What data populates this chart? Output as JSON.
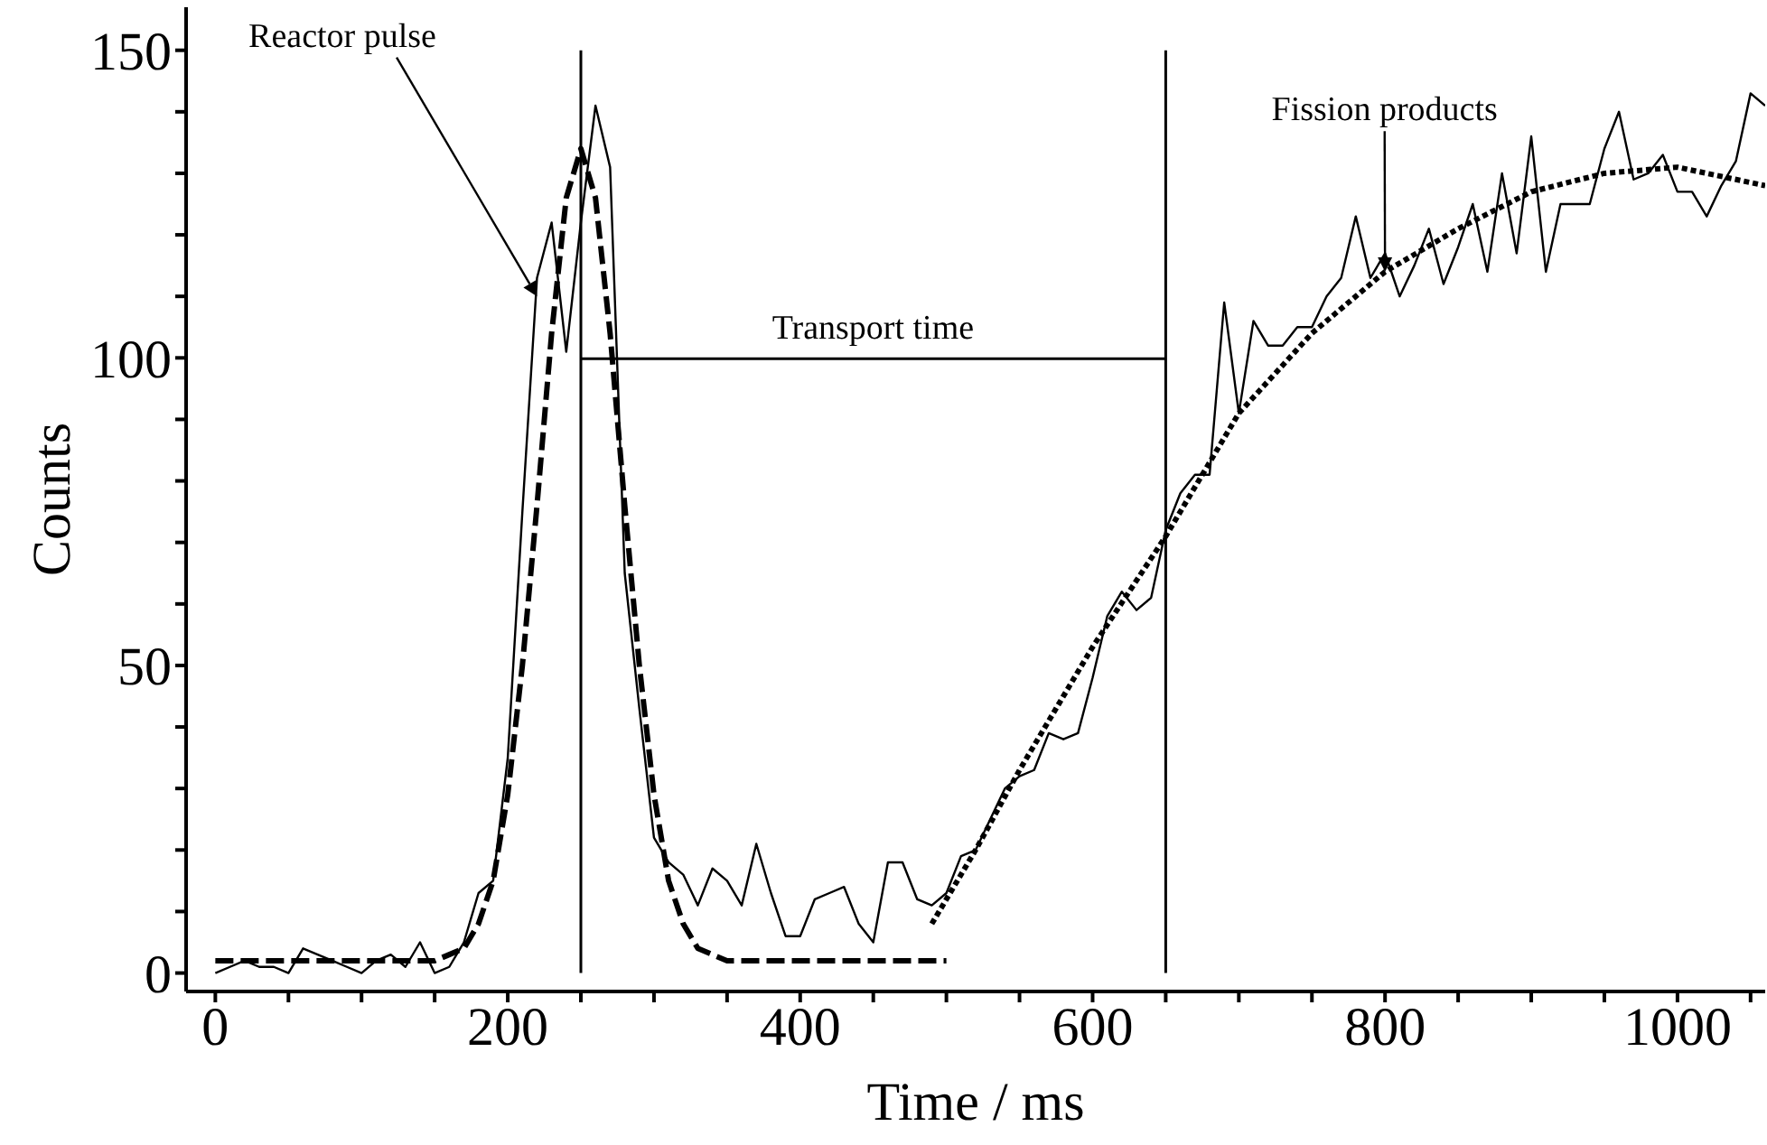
{
  "chart_data": {
    "type": "line",
    "xlabel": "Time / ms",
    "ylabel": "Counts",
    "xlim": [
      -20,
      1060
    ],
    "ylim": [
      -3,
      157
    ],
    "xticks": [
      0,
      {
        "value": 50,
        "label": null
      },
      {
        "value": 100,
        "label": null
      },
      {
        "value": 150,
        "label": null
      },
      200,
      {
        "value": 250,
        "label": null
      },
      {
        "value": 300,
        "label": null
      },
      {
        "value": 350,
        "label": null
      },
      400,
      {
        "value": 450,
        "label": null
      },
      {
        "value": 500,
        "label": null
      },
      {
        "value": 550,
        "label": null
      },
      600,
      {
        "value": 650,
        "label": null
      },
      {
        "value": 700,
        "label": null
      },
      {
        "value": 750,
        "label": null
      },
      800,
      {
        "value": 850,
        "label": null
      },
      {
        "value": 900,
        "label": null
      },
      {
        "value": 950,
        "label": null
      },
      1000,
      {
        "value": 1050,
        "label": null
      }
    ],
    "yticks": [
      0,
      {
        "value": 10,
        "label": null
      },
      {
        "value": 20,
        "label": null
      },
      {
        "value": 30,
        "label": null
      },
      {
        "value": 40,
        "label": null
      },
      50,
      {
        "value": 60,
        "label": null
      },
      {
        "value": 70,
        "label": null
      },
      {
        "value": 80,
        "label": null
      },
      {
        "value": 90,
        "label": null
      },
      100,
      {
        "value": 110,
        "label": null
      },
      {
        "value": 120,
        "label": null
      },
      {
        "value": 130,
        "label": null
      },
      {
        "value": 140,
        "label": null
      },
      150
    ],
    "marker": "none",
    "series": [
      {
        "color": "#000000",
        "line_style": "solid",
        "x": [
          0,
          10,
          20,
          30,
          40,
          50,
          60,
          70,
          80,
          90,
          100,
          110,
          120,
          130,
          140,
          150,
          160,
          170,
          180,
          190,
          200,
          210,
          220,
          230,
          240,
          250,
          260,
          270,
          280,
          290,
          300,
          310,
          320,
          330,
          340,
          350,
          360,
          370,
          380,
          390,
          400,
          410,
          420,
          430,
          440,
          450,
          460,
          470,
          480,
          490,
          500,
          510,
          520,
          530,
          540,
          550,
          560,
          570,
          580,
          590,
          600,
          610,
          620,
          630,
          640,
          650,
          660,
          670,
          680,
          690,
          700,
          710,
          720,
          730,
          740,
          750,
          760,
          770,
          780,
          790,
          800,
          810,
          820,
          830,
          840,
          850,
          860,
          870,
          880,
          890,
          900,
          910,
          920,
          930,
          940,
          950,
          960,
          970,
          980,
          990,
          1000,
          1010,
          1020,
          1030,
          1040,
          1050,
          1060
        ],
        "values": [
          0,
          1,
          2,
          1,
          1,
          0,
          4,
          3,
          2,
          1,
          0,
          2,
          3,
          1,
          5,
          0,
          1,
          5,
          13,
          15,
          35,
          75,
          113,
          122,
          101,
          122,
          141,
          131,
          65,
          43,
          22,
          18,
          16,
          11,
          17,
          15,
          11,
          21,
          13,
          6,
          6,
          12,
          13,
          14,
          8,
          5,
          18,
          18,
          12,
          11,
          13,
          19,
          20,
          25,
          30,
          32,
          33,
          39,
          38,
          39,
          48,
          58,
          62,
          59,
          61,
          72,
          78,
          81,
          81,
          109,
          91,
          106,
          102,
          102,
          105,
          105,
          110,
          113,
          123,
          113,
          117,
          110,
          115,
          121,
          112,
          118,
          125,
          114,
          130,
          117,
          136,
          114,
          125,
          125,
          125,
          134,
          140,
          129,
          130,
          133,
          127,
          127,
          123,
          128,
          132,
          143,
          141
        ]
      },
      {
        "type": "line",
        "color": "#000000",
        "line_style": "dashed",
        "x": [
          0,
          100,
          150,
          160,
          170,
          180,
          190,
          200,
          210,
          220,
          230,
          240,
          250,
          260,
          270,
          280,
          290,
          300,
          310,
          320,
          330,
          340,
          350,
          400,
          500
        ],
        "values": [
          2,
          2,
          2,
          3,
          4,
          8,
          15,
          29,
          50,
          76,
          104,
          126,
          134,
          126,
          104,
          76,
          50,
          29,
          15,
          8,
          4,
          3,
          2,
          2,
          2
        ]
      },
      {
        "type": "line",
        "color": "#000000",
        "line_style": "dotted",
        "x": [
          490,
          520,
          550,
          600,
          650,
          700,
          750,
          800,
          850,
          900,
          950,
          1000,
          1060
        ],
        "values": [
          8,
          20,
          33,
          53,
          71,
          91,
          104,
          114,
          121,
          127,
          130,
          131,
          128
        ]
      }
    ],
    "ref_lines": [
      {
        "axis": "x",
        "value": 250
      },
      {
        "axis": "x",
        "value": 650
      }
    ],
    "annotations": [
      {
        "text": "Reactor pulse",
        "x": 220,
        "y": 110
      },
      "Transport time",
      {
        "text": "Fission products",
        "x": 800,
        "y": 114
      }
    ]
  }
}
